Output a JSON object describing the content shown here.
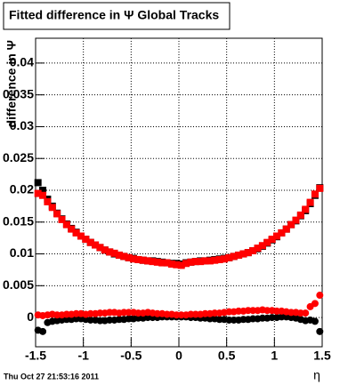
{
  "chart_data": {
    "type": "scatter",
    "title": "Fitted difference in Ψ   Global Tracks",
    "y_label": "difference in Ψ",
    "x_label": "η",
    "footer": "Thu Oct 27 21:53:16 2011",
    "x": [
      -1.475,
      -1.425,
      -1.375,
      -1.325,
      -1.275,
      -1.225,
      -1.175,
      -1.125,
      -1.075,
      -1.025,
      -0.975,
      -0.925,
      -0.875,
      -0.825,
      -0.775,
      -0.725,
      -0.675,
      -0.625,
      -0.575,
      -0.525,
      -0.475,
      -0.425,
      -0.375,
      -0.325,
      -0.275,
      -0.225,
      -0.175,
      -0.125,
      -0.075,
      -0.025,
      0.025,
      0.075,
      0.125,
      0.175,
      0.225,
      0.275,
      0.325,
      0.375,
      0.425,
      0.475,
      0.525,
      0.575,
      0.625,
      0.675,
      0.725,
      0.775,
      0.825,
      0.875,
      0.925,
      0.975,
      1.025,
      1.075,
      1.125,
      1.175,
      1.225,
      1.275,
      1.325,
      1.375,
      1.425,
      1.475
    ],
    "series": [
      {
        "color": "#000000",
        "marker": "square",
        "values": [
          0.0212,
          0.02,
          0.0186,
          0.0175,
          0.0164,
          0.0155,
          0.0147,
          0.014,
          0.0134,
          0.0128,
          0.0123,
          0.0118,
          0.0114,
          0.011,
          0.0106,
          0.0103,
          0.01,
          0.0098,
          0.0096,
          0.0094,
          0.0093,
          0.0091,
          0.009,
          0.0089,
          0.0089,
          0.0088,
          0.0087,
          0.0086,
          0.0085,
          0.0085,
          0.0084,
          0.0086,
          0.0087,
          0.0088,
          0.0089,
          0.0089,
          0.009,
          0.0091,
          0.0092,
          0.0093,
          0.0094,
          0.0096,
          0.0098,
          0.01,
          0.0102,
          0.0105,
          0.0108,
          0.0112,
          0.0117,
          0.0122,
          0.0127,
          0.0133,
          0.0139,
          0.0146,
          0.0152,
          0.016,
          0.0168,
          0.0179,
          0.0192,
          0.0204
        ]
      },
      {
        "color": "#ff0000",
        "marker": "square",
        "values": [
          0.0195,
          0.0192,
          0.0182,
          0.0173,
          0.0163,
          0.0154,
          0.0146,
          0.0139,
          0.0133,
          0.0128,
          0.0123,
          0.0118,
          0.0114,
          0.011,
          0.0106,
          0.0103,
          0.0101,
          0.0098,
          0.0096,
          0.0094,
          0.0092,
          0.0091,
          0.009,
          0.0089,
          0.0088,
          0.0087,
          0.0086,
          0.0086,
          0.0084,
          0.0083,
          0.0082,
          0.0085,
          0.0087,
          0.0088,
          0.0088,
          0.0089,
          0.0089,
          0.009,
          0.0091,
          0.0092,
          0.0094,
          0.0096,
          0.0098,
          0.01,
          0.0102,
          0.0105,
          0.0109,
          0.0113,
          0.0118,
          0.0123,
          0.0128,
          0.0133,
          0.0139,
          0.0146,
          0.0153,
          0.0161,
          0.017,
          0.0181,
          0.0194,
          0.0203
        ]
      },
      {
        "color": "#000000",
        "marker": "circle",
        "values": [
          -0.002,
          -0.0022,
          -0.0008,
          -0.0006,
          -0.0005,
          -0.0004,
          -0.0003,
          -0.0003,
          -0.0002,
          -0.0002,
          -0.0003,
          -0.0004,
          -0.0004,
          -0.0005,
          -0.0005,
          -0.0004,
          -0.0004,
          -0.0003,
          -0.0003,
          -0.0002,
          -0.0002,
          -0.0001,
          -0.0001,
          0.0,
          0.0,
          0.0,
          0.0001,
          0.0001,
          0.0001,
          0.0001,
          0.0001,
          0.0001,
          0.0,
          0.0,
          -0.0001,
          -0.0001,
          -0.0002,
          -0.0002,
          -0.0003,
          -0.0003,
          -0.0004,
          -0.0004,
          -0.0004,
          -0.0003,
          -0.0003,
          -0.0002,
          -0.0002,
          -0.0001,
          -0.0001,
          0.0,
          0.0,
          0.0001,
          0.0001,
          0.0,
          -0.0001,
          -0.0003,
          -0.0005,
          -0.0004,
          -0.0006,
          -0.0022
        ]
      },
      {
        "color": "#ff0000",
        "marker": "circle",
        "values": [
          0.0004,
          0.0003,
          0.0004,
          0.0005,
          0.0004,
          0.0004,
          0.0005,
          0.0005,
          0.0006,
          0.0006,
          0.0005,
          0.0006,
          0.0006,
          0.0007,
          0.0007,
          0.0008,
          0.0008,
          0.0007,
          0.0008,
          0.0008,
          0.0008,
          0.0007,
          0.0007,
          0.0008,
          0.0007,
          0.0006,
          0.0006,
          0.0005,
          0.0005,
          0.0004,
          0.0004,
          0.0004,
          0.0005,
          0.0005,
          0.0005,
          0.0006,
          0.0006,
          0.0007,
          0.0007,
          0.0008,
          0.0009,
          0.0009,
          0.001,
          0.001,
          0.0011,
          0.0011,
          0.0011,
          0.0012,
          0.0011,
          0.0011,
          0.001,
          0.001,
          0.0009,
          0.0008,
          0.0008,
          0.0007,
          0.0007,
          0.0017,
          0.0022,
          0.0035
        ]
      }
    ],
    "xlim": [
      -1.5,
      1.5
    ],
    "xticks": [
      -1.5,
      -1,
      -0.5,
      0,
      0.5,
      1,
      1.5
    ],
    "ylim": [
      -0.0046,
      0.0439
    ],
    "yticks": [
      0,
      0.005,
      0.01,
      0.015,
      0.02,
      0.025,
      0.03,
      0.035,
      0.04
    ],
    "grid": true
  }
}
